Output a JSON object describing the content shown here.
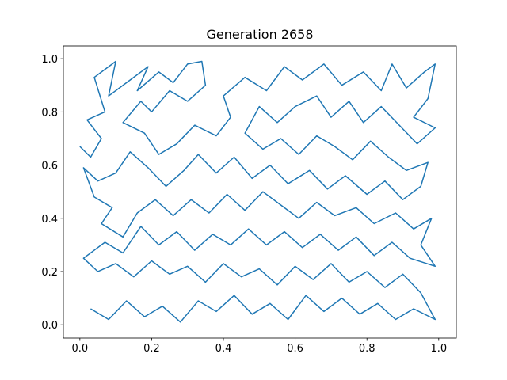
{
  "chart_data": {
    "type": "line",
    "title": "Generation 2658",
    "xlim": [
      -0.046,
      1.049
    ],
    "ylim": [
      -0.05,
      1.048
    ],
    "xticks": [
      {
        "value": 0,
        "label": "0.0"
      },
      {
        "value": 0.2,
        "label": "0.2"
      },
      {
        "value": 0.4,
        "label": "0.4"
      },
      {
        "value": 0.6,
        "label": "0.6"
      },
      {
        "value": 0.8,
        "label": "0.8"
      },
      {
        "value": 1,
        "label": "1.0"
      }
    ],
    "yticks": [
      {
        "value": 0,
        "label": "0.0"
      },
      {
        "value": 0.2,
        "label": "0.2"
      },
      {
        "value": 0.4,
        "label": "0.4"
      },
      {
        "value": 0.6,
        "label": "0.6"
      },
      {
        "value": 0.8,
        "label": "0.8"
      },
      {
        "value": 1,
        "label": "1.0"
      }
    ],
    "series": [
      {
        "color": "#1f77b4",
        "x": [
          0.0,
          0.03,
          0.06,
          0.02,
          0.07,
          0.04,
          0.1,
          0.08,
          0.14,
          0.19,
          0.16,
          0.22,
          0.26,
          0.3,
          0.34,
          0.35,
          0.3,
          0.25,
          0.2,
          0.17,
          0.12,
          0.18,
          0.22,
          0.27,
          0.32,
          0.38,
          0.42,
          0.4,
          0.46,
          0.52,
          0.57,
          0.62,
          0.68,
          0.73,
          0.79,
          0.84,
          0.87,
          0.91,
          0.96,
          0.99,
          0.97,
          0.93,
          0.99,
          0.94,
          0.89,
          0.84,
          0.79,
          0.75,
          0.7,
          0.66,
          0.6,
          0.55,
          0.5,
          0.46,
          0.51,
          0.56,
          0.61,
          0.66,
          0.71,
          0.76,
          0.81,
          0.86,
          0.91,
          0.97,
          0.95,
          0.9,
          0.85,
          0.8,
          0.74,
          0.69,
          0.64,
          0.58,
          0.53,
          0.48,
          0.43,
          0.38,
          0.33,
          0.29,
          0.24,
          0.19,
          0.14,
          0.1,
          0.05,
          0.01,
          0.04,
          0.09,
          0.06,
          0.12,
          0.16,
          0.21,
          0.26,
          0.31,
          0.36,
          0.41,
          0.46,
          0.51,
          0.56,
          0.61,
          0.66,
          0.71,
          0.77,
          0.82,
          0.88,
          0.93,
          0.98,
          0.95,
          0.99,
          0.92,
          0.87,
          0.82,
          0.77,
          0.72,
          0.67,
          0.62,
          0.57,
          0.52,
          0.47,
          0.42,
          0.37,
          0.32,
          0.27,
          0.22,
          0.17,
          0.12,
          0.07,
          0.01,
          0.05,
          0.1,
          0.15,
          0.2,
          0.25,
          0.3,
          0.35,
          0.4,
          0.45,
          0.5,
          0.55,
          0.6,
          0.65,
          0.7,
          0.75,
          0.8,
          0.85,
          0.9,
          0.95,
          0.99,
          0.93,
          0.88,
          0.83,
          0.78,
          0.73,
          0.68,
          0.63,
          0.58,
          0.53,
          0.48,
          0.43,
          0.38,
          0.33,
          0.28,
          0.23,
          0.18,
          0.13,
          0.08,
          0.03
        ],
        "values": [
          0.67,
          0.63,
          0.7,
          0.77,
          0.8,
          0.93,
          0.99,
          0.86,
          0.92,
          0.97,
          0.88,
          0.95,
          0.91,
          0.98,
          0.99,
          0.9,
          0.84,
          0.88,
          0.8,
          0.84,
          0.76,
          0.72,
          0.64,
          0.68,
          0.75,
          0.71,
          0.78,
          0.86,
          0.93,
          0.88,
          0.97,
          0.92,
          0.98,
          0.9,
          0.95,
          0.88,
          0.98,
          0.89,
          0.95,
          0.98,
          0.85,
          0.78,
          0.74,
          0.68,
          0.75,
          0.82,
          0.76,
          0.84,
          0.78,
          0.86,
          0.82,
          0.76,
          0.82,
          0.72,
          0.66,
          0.7,
          0.64,
          0.71,
          0.67,
          0.62,
          0.69,
          0.63,
          0.58,
          0.61,
          0.52,
          0.47,
          0.54,
          0.49,
          0.56,
          0.51,
          0.58,
          0.53,
          0.6,
          0.55,
          0.63,
          0.57,
          0.64,
          0.58,
          0.52,
          0.59,
          0.65,
          0.57,
          0.54,
          0.59,
          0.48,
          0.44,
          0.38,
          0.33,
          0.42,
          0.47,
          0.41,
          0.47,
          0.42,
          0.49,
          0.43,
          0.5,
          0.45,
          0.4,
          0.46,
          0.41,
          0.44,
          0.38,
          0.42,
          0.36,
          0.4,
          0.3,
          0.22,
          0.25,
          0.31,
          0.26,
          0.33,
          0.28,
          0.34,
          0.29,
          0.35,
          0.3,
          0.36,
          0.3,
          0.34,
          0.28,
          0.35,
          0.3,
          0.37,
          0.27,
          0.31,
          0.25,
          0.2,
          0.23,
          0.18,
          0.24,
          0.19,
          0.22,
          0.16,
          0.23,
          0.18,
          0.21,
          0.15,
          0.22,
          0.17,
          0.23,
          0.16,
          0.2,
          0.14,
          0.19,
          0.12,
          0.02,
          0.06,
          0.02,
          0.08,
          0.04,
          0.1,
          0.05,
          0.11,
          0.02,
          0.08,
          0.04,
          0.11,
          0.05,
          0.09,
          0.01,
          0.07,
          0.03,
          0.09,
          0.02,
          0.06
        ]
      }
    ]
  }
}
